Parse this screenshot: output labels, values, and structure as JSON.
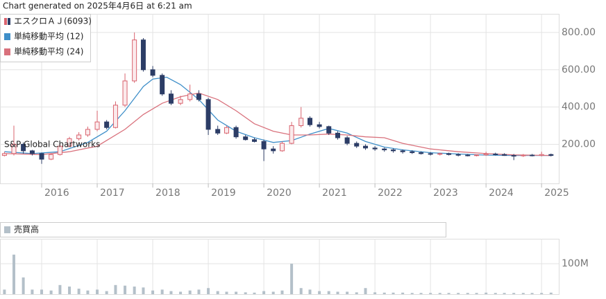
{
  "chart_data": [
    {
      "type": "candlestick",
      "title": "Chart generated on 2025年4月6日 at 6:21 am",
      "annotation": "S&P Global Chartworks",
      "name": "エスクロＡＪ(6093)",
      "up_color": "#d9636e",
      "down_color": "#2c3d66",
      "candles": {
        "x": [
          2015.33,
          2015.5,
          2015.67,
          2015.83,
          2016,
          2016.17,
          2016.33,
          2016.5,
          2016.67,
          2016.83,
          2017,
          2017.17,
          2017.33,
          2017.5,
          2017.67,
          2017.83,
          2018,
          2018.17,
          2018.33,
          2018.5,
          2018.67,
          2018.83,
          2019,
          2019.17,
          2019.33,
          2019.5,
          2019.67,
          2019.83,
          2020,
          2020.17,
          2020.33,
          2020.5,
          2020.67,
          2020.83,
          2021,
          2021.17,
          2021.33,
          2021.5,
          2021.67,
          2021.83,
          2022,
          2022.17,
          2022.33,
          2022.5,
          2022.67,
          2022.83,
          2023,
          2023.17,
          2023.33,
          2023.5,
          2023.67,
          2023.83,
          2024,
          2024.17,
          2024.33,
          2024.5,
          2024.67,
          2024.83,
          2025,
          2025.17
        ],
        "open": [
          140,
          150,
          200,
          165,
          150,
          120,
          145,
          190,
          230,
          250,
          280,
          320,
          290,
          410,
          540,
          760,
          600,
          570,
          470,
          420,
          440,
          470,
          440,
          280,
          260,
          290,
          240,
          225,
          215,
          175,
          165,
          205,
          300,
          340,
          305,
          295,
          260,
          235,
          205,
          190,
          180,
          175,
          170,
          165,
          160,
          155,
          150,
          148,
          150,
          145,
          142,
          140,
          143,
          148,
          145,
          140,
          138,
          142,
          140,
          145
        ],
        "high": [
          160,
          300,
          210,
          170,
          155,
          150,
          200,
          240,
          265,
          295,
          380,
          330,
          430,
          580,
          800,
          770,
          620,
          580,
          490,
          460,
          520,
          490,
          450,
          300,
          300,
          300,
          250,
          235,
          225,
          190,
          215,
          320,
          400,
          350,
          320,
          300,
          270,
          245,
          215,
          200,
          190,
          182,
          178,
          172,
          168,
          162,
          158,
          155,
          155,
          152,
          148,
          146,
          160,
          155,
          152,
          148,
          148,
          148,
          160,
          150
        ],
        "low": [
          135,
          140,
          150,
          140,
          95,
          115,
          140,
          185,
          220,
          240,
          270,
          280,
          285,
          400,
          530,
          590,
          560,
          460,
          410,
          410,
          430,
          430,
          250,
          250,
          255,
          230,
          220,
          210,
          110,
          150,
          160,
          200,
          290,
          295,
          285,
          250,
          225,
          195,
          180,
          170,
          165,
          160,
          155,
          150,
          148,
          145,
          140,
          140,
          140,
          135,
          135,
          135,
          138,
          140,
          138,
          115,
          132,
          135,
          135,
          135
        ],
        "close": [
          150,
          200,
          165,
          150,
          120,
          145,
          190,
          230,
          250,
          280,
          320,
          290,
          410,
          540,
          760,
          600,
          570,
          470,
          420,
          440,
          470,
          440,
          280,
          260,
          290,
          240,
          225,
          215,
          175,
          165,
          205,
          300,
          340,
          305,
          295,
          260,
          235,
          205,
          190,
          180,
          175,
          170,
          165,
          160,
          155,
          150,
          148,
          150,
          145,
          142,
          140,
          143,
          148,
          145,
          140,
          138,
          142,
          140,
          145,
          140
        ]
      },
      "lines": [
        {
          "name": "単純移動平均 (12)",
          "color": "#3f8fc9",
          "x": [
            2015.33,
            2015.83,
            2016.33,
            2016.83,
            2017.17,
            2017.5,
            2017.83,
            2018,
            2018.25,
            2018.5,
            2018.83,
            2019.17,
            2019.5,
            2019.83,
            2020.17,
            2020.5,
            2020.83,
            2021.17,
            2021.5,
            2021.83,
            2022.17,
            2022.5,
            2023,
            2023.5,
            2024,
            2024.5,
            2025.17
          ],
          "values": [
            160,
            150,
            160,
            210,
            270,
            380,
            510,
            550,
            560,
            520,
            440,
            330,
            270,
            235,
            210,
            220,
            255,
            285,
            260,
            215,
            185,
            170,
            155,
            148,
            142,
            140,
            140
          ]
        },
        {
          "name": "単純移動平均 (24)",
          "color": "#d9717c",
          "x": [
            2015.33,
            2016,
            2016.5,
            2017,
            2017.5,
            2017.83,
            2018.17,
            2018.5,
            2018.83,
            2019.17,
            2019.5,
            2019.83,
            2020.17,
            2020.5,
            2020.83,
            2021.17,
            2021.5,
            2021.83,
            2022.17,
            2022.5,
            2023,
            2023.5,
            2024,
            2024.5,
            2025.17
          ],
          "values": [
            150,
            145,
            160,
            190,
            280,
            360,
            420,
            455,
            475,
            440,
            380,
            310,
            270,
            250,
            250,
            255,
            250,
            240,
            235,
            205,
            175,
            160,
            150,
            143,
            140
          ]
        }
      ],
      "xlim": [
        2015.25,
        2025.31
      ],
      "xticks": [
        2016,
        2017,
        2018,
        2019,
        2020,
        2021,
        2022,
        2023,
        2024,
        2025
      ],
      "ylim": [
        -10,
        900
      ],
      "yticks": [
        {
          "value": 200,
          "label": "200.00"
        },
        {
          "value": 400,
          "label": "400.00"
        },
        {
          "value": 600,
          "label": "600.00"
        },
        {
          "value": 800,
          "label": "800.00"
        }
      ],
      "grid": true
    },
    {
      "type": "bar",
      "name": "売買高",
      "color": "#b4c0c9",
      "x": [
        2015.33,
        2015.5,
        2015.67,
        2015.83,
        2016,
        2016.17,
        2016.33,
        2016.5,
        2016.67,
        2016.83,
        2017,
        2017.17,
        2017.33,
        2017.5,
        2017.67,
        2017.83,
        2018,
        2018.17,
        2018.33,
        2018.5,
        2018.67,
        2018.83,
        2019,
        2019.17,
        2019.33,
        2019.5,
        2019.67,
        2019.83,
        2020,
        2020.17,
        2020.33,
        2020.5,
        2020.67,
        2020.83,
        2021,
        2021.17,
        2021.33,
        2021.5,
        2021.67,
        2021.83,
        2022,
        2022.17,
        2022.33,
        2022.5,
        2022.67,
        2022.83,
        2023,
        2023.17,
        2023.33,
        2023.5,
        2023.67,
        2023.83,
        2024,
        2024.17,
        2024.33,
        2024.5,
        2024.67,
        2024.83,
        2025,
        2025.17
      ],
      "values": [
        15000000,
        130000000,
        55000000,
        15000000,
        15000000,
        12000000,
        30000000,
        25000000,
        18000000,
        12000000,
        15000000,
        10000000,
        30000000,
        28000000,
        25000000,
        22000000,
        12000000,
        15000000,
        10000000,
        8000000,
        12000000,
        15000000,
        20000000,
        10000000,
        8000000,
        8000000,
        6000000,
        5000000,
        10000000,
        8000000,
        12000000,
        100000000,
        20000000,
        15000000,
        10000000,
        10000000,
        8000000,
        8000000,
        6000000,
        20000000,
        6000000,
        5000000,
        5000000,
        5000000,
        4000000,
        4000000,
        4000000,
        4000000,
        4000000,
        4000000,
        4000000,
        4000000,
        5000000,
        4000000,
        4000000,
        4000000,
        4000000,
        4000000,
        4000000,
        5000000
      ],
      "xlim": [
        2015.25,
        2025.31
      ],
      "ylim": [
        0,
        182000000
      ],
      "yticks": [
        {
          "value": 100000000,
          "label": "100M"
        }
      ],
      "grid": true
    }
  ]
}
